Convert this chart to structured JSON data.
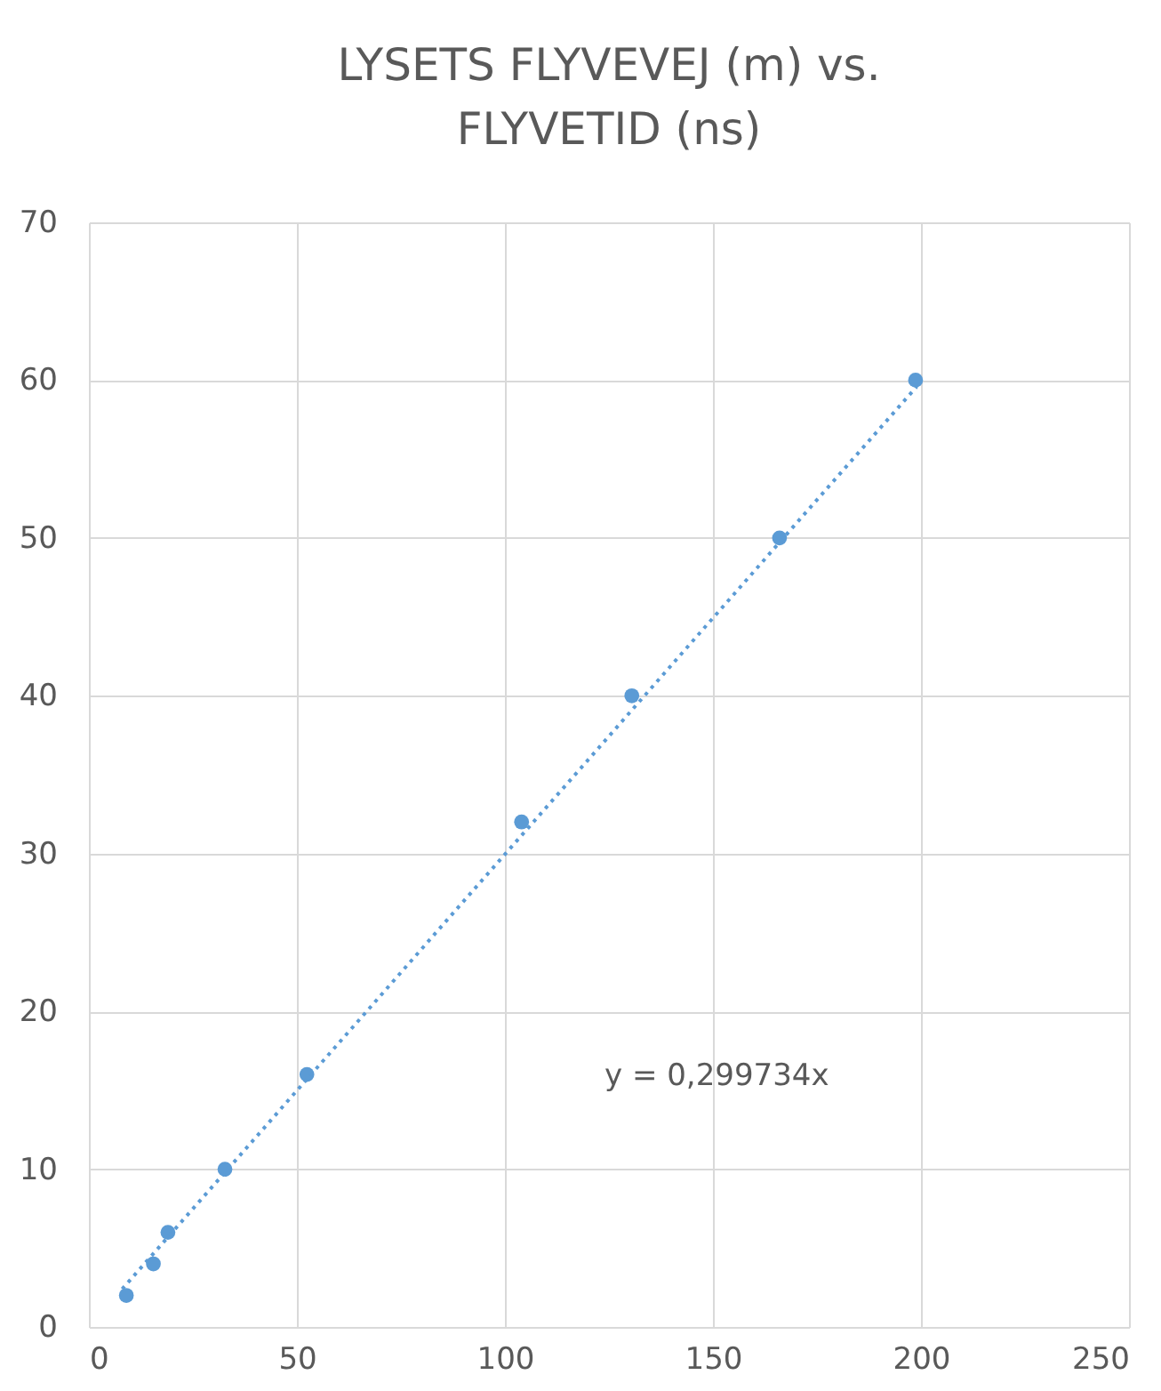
{
  "chart_data": {
    "type": "scatter",
    "title": "LYSETS FLYVEVEJ (m)  vs.\nFLYVETID (ns)",
    "x": [
      9,
      15.5,
      19,
      32.7,
      52.4,
      104,
      130.5,
      166,
      198.7
    ],
    "series": [
      {
        "color": "#5b9bd5",
        "marker": "circle",
        "values": [
          2,
          4,
          6,
          10,
          16,
          32,
          40,
          50,
          60
        ]
      },
      {
        "type": "line",
        "color": "#5b9bd5",
        "line_style": "dotted",
        "marker": "none",
        "x": [
          8,
          199
        ],
        "values": [
          2.4,
          59.6
        ]
      }
    ],
    "annotations": [
      "y = 0,299734x"
    ],
    "xlim": [
      0,
      250
    ],
    "xticks": [
      0,
      50,
      100,
      150,
      200,
      250
    ],
    "ylim": [
      0,
      70
    ],
    "yticks": [
      0,
      10,
      20,
      30,
      40,
      50,
      60,
      70
    ],
    "grid": true
  }
}
